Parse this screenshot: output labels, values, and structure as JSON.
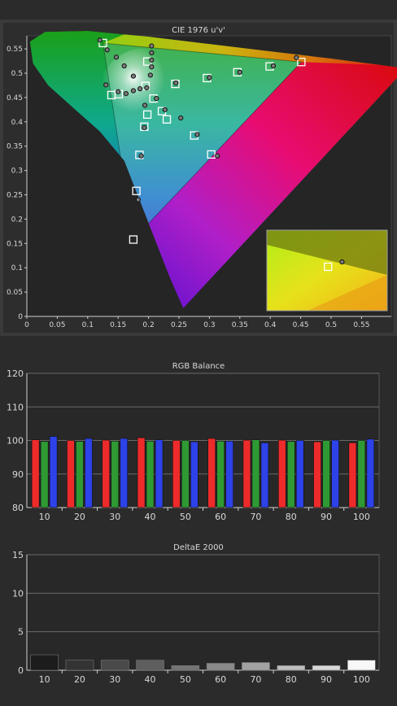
{
  "chart_data": [
    {
      "type": "scatter",
      "title": "CIE 1976 u'v'",
      "xlabel": "",
      "ylabel": "",
      "xlim": [
        0,
        0.6
      ],
      "ylim": [
        0,
        0.6
      ],
      "x_ticks": [
        "0",
        "0.05",
        "0.1",
        "0.15",
        "0.2",
        "0.25",
        "0.3",
        "0.35",
        "0.4",
        "0.45",
        "0.5",
        "0.55"
      ],
      "y_ticks": [
        "0",
        "0.05",
        "0.1",
        "0.15",
        "0.2",
        "0.25",
        "0.3",
        "0.35",
        "0.4",
        "0.45",
        "0.5",
        "0.55"
      ],
      "gamut_triangle": {
        "red": [
          0.451,
          0.523
        ],
        "green": [
          0.125,
          0.562
        ],
        "blue": [
          0.175,
          0.158
        ]
      },
      "targets": [
        [
          0.451,
          0.523
        ],
        [
          0.399,
          0.514
        ],
        [
          0.346,
          0.502
        ],
        [
          0.296,
          0.49
        ],
        [
          0.244,
          0.478
        ],
        [
          0.125,
          0.562
        ],
        [
          0.139,
          0.455
        ],
        [
          0.151,
          0.457
        ],
        [
          0.195,
          0.474
        ],
        [
          0.198,
          0.524
        ],
        [
          0.208,
          0.448
        ],
        [
          0.222,
          0.422
        ],
        [
          0.198,
          0.415
        ],
        [
          0.193,
          0.39
        ],
        [
          0.185,
          0.332
        ],
        [
          0.18,
          0.258
        ],
        [
          0.175,
          0.158
        ],
        [
          0.23,
          0.405
        ],
        [
          0.275,
          0.372
        ],
        [
          0.303,
          0.333
        ]
      ],
      "measured": [
        [
          0.443,
          0.532
        ],
        [
          0.405,
          0.515
        ],
        [
          0.35,
          0.502
        ],
        [
          0.3,
          0.491
        ],
        [
          0.245,
          0.48
        ],
        [
          0.12,
          0.568
        ],
        [
          0.132,
          0.548
        ],
        [
          0.147,
          0.533
        ],
        [
          0.16,
          0.515
        ],
        [
          0.175,
          0.494
        ],
        [
          0.205,
          0.556
        ],
        [
          0.205,
          0.542
        ],
        [
          0.205,
          0.527
        ],
        [
          0.205,
          0.513
        ],
        [
          0.203,
          0.496
        ],
        [
          0.13,
          0.476
        ],
        [
          0.15,
          0.462
        ],
        [
          0.163,
          0.458
        ],
        [
          0.175,
          0.464
        ],
        [
          0.186,
          0.468
        ],
        [
          0.197,
          0.47
        ],
        [
          0.213,
          0.448
        ],
        [
          0.227,
          0.425
        ],
        [
          0.194,
          0.434
        ],
        [
          0.193,
          0.388
        ],
        [
          0.188,
          0.33
        ],
        [
          0.183,
          0.24
        ],
        [
          0.253,
          0.408
        ],
        [
          0.28,
          0.374
        ],
        [
          0.313,
          0.33
        ]
      ],
      "inset": {
        "target": [
          0.495,
          0.102
        ],
        "measured": [
          0.518,
          0.112
        ]
      }
    },
    {
      "type": "bar",
      "title": "RGB Balance",
      "categories": [
        "10",
        "20",
        "30",
        "40",
        "50",
        "60",
        "70",
        "80",
        "90",
        "100"
      ],
      "ylim": [
        80,
        120
      ],
      "y_ticks": [
        "80",
        "90",
        "100",
        "110",
        "120"
      ],
      "series": [
        {
          "values": [
            100.2,
            100.0,
            100.1,
            100.8,
            100.0,
            100.6,
            100.1,
            100.1,
            99.6,
            99.3
          ],
          "color": "#ee2b2b"
        },
        {
          "values": [
            99.7,
            99.7,
            99.8,
            99.8,
            100.0,
            99.8,
            100.2,
            99.7,
            100.0,
            100.0
          ],
          "color": "#2f9a34"
        },
        {
          "values": [
            101.2,
            100.6,
            100.6,
            100.2,
            99.6,
            99.8,
            99.3,
            100.0,
            100.1,
            100.4
          ],
          "color": "#2d42e8"
        }
      ]
    },
    {
      "type": "bar",
      "title": "DeltaE 2000",
      "categories": [
        "10",
        "20",
        "30",
        "40",
        "50",
        "60",
        "70",
        "80",
        "90",
        "100"
      ],
      "ylim": [
        0,
        15
      ],
      "y_ticks": [
        "0",
        "5",
        "10",
        "15"
      ],
      "values": [
        2.0,
        1.3,
        1.3,
        1.3,
        0.6,
        0.9,
        1.0,
        0.6,
        0.6,
        1.3
      ],
      "colors": [
        "#1c1c1c",
        "#333333",
        "#4a4a4a",
        "#5e5e5e",
        "#747474",
        "#8a8a8a",
        "#a2a2a2",
        "#bdbdbd",
        "#d8d8d8",
        "#f7f7f7"
      ]
    }
  ]
}
